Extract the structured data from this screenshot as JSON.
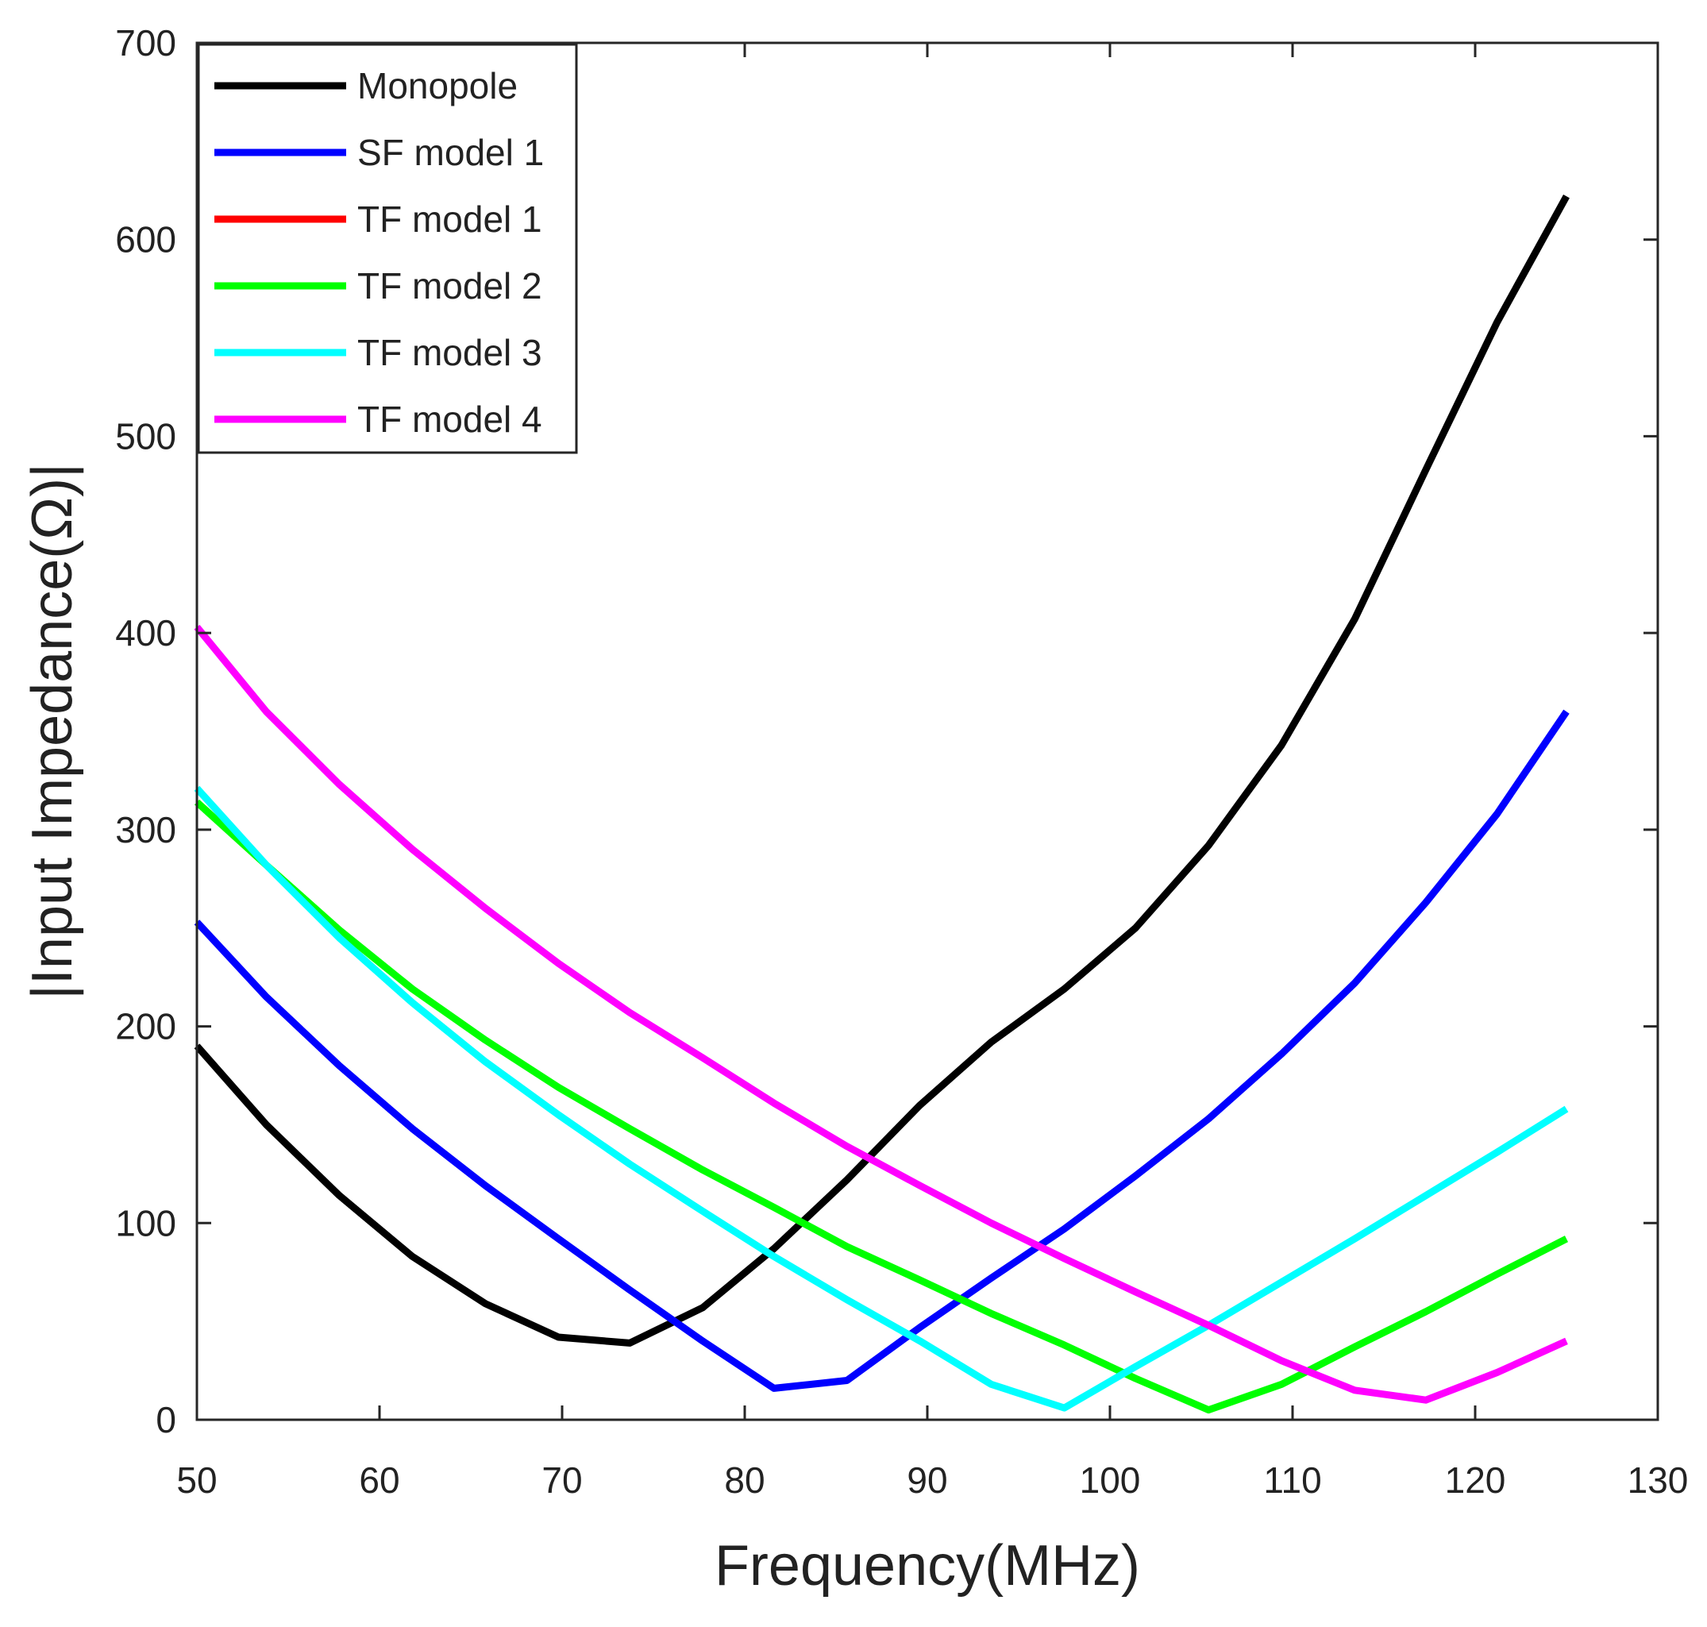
{
  "chart_data": {
    "type": "line",
    "title": "",
    "xlabel": "Frequency(MHz)",
    "ylabel": "|Input Impedance(Ω)|",
    "xlim": [
      50,
      130
    ],
    "ylim": [
      0,
      700
    ],
    "xticks": [
      50,
      60,
      70,
      80,
      90,
      100,
      110,
      120,
      130
    ],
    "yticks": [
      0,
      100,
      200,
      300,
      400,
      500,
      600,
      700
    ],
    "grid": false,
    "legend_position": "top-left",
    "series": [
      {
        "name": "Monopole",
        "color": "#000000",
        "x": [
          50,
          53.8,
          57.8,
          61.8,
          65.8,
          69.8,
          73.7,
          77.7,
          81.6,
          85.6,
          89.6,
          93.5,
          97.5,
          101.4,
          105.4,
          109.4,
          113.4,
          117.3,
          121.2,
          125
        ],
        "y": [
          190,
          150,
          114,
          83,
          59,
          42,
          39,
          57,
          87,
          122,
          160,
          192,
          219,
          250,
          292,
          343,
          407,
          483,
          558,
          622
        ]
      },
      {
        "name": "SF model 1",
        "color": "#0000ff",
        "x": [
          50,
          53.8,
          57.8,
          61.8,
          65.8,
          69.8,
          73.7,
          77.7,
          81.6,
          85.6,
          89.6,
          93.5,
          97.5,
          101.4,
          105.4,
          109.4,
          113.4,
          117.3,
          121.2,
          125
        ],
        "y": [
          253,
          215,
          180,
          148,
          119,
          92,
          66,
          40,
          16,
          20,
          47,
          72,
          97,
          124,
          153,
          186,
          222,
          263,
          308,
          360
        ]
      },
      {
        "name": "TF model 1",
        "color": "#ff0000",
        "x": [],
        "y": []
      },
      {
        "name": "TF model 2",
        "color": "#00ff00",
        "x": [
          50,
          53.8,
          57.8,
          61.8,
          65.8,
          69.8,
          73.7,
          77.7,
          81.6,
          85.6,
          89.6,
          93.5,
          97.5,
          101.4,
          105.4,
          109.4,
          113.4,
          117.3,
          121.2,
          125
        ],
        "y": [
          314,
          282,
          249,
          219,
          193,
          169,
          148,
          127,
          108,
          88,
          71,
          54,
          38,
          21,
          5,
          18,
          37,
          55,
          74,
          92
        ]
      },
      {
        "name": "TF model 3",
        "color": "#00ffff",
        "x": [
          50,
          53.8,
          57.8,
          61.8,
          65.8,
          69.8,
          73.7,
          77.7,
          81.6,
          85.6,
          89.6,
          93.5,
          97.5,
          101.4,
          105.4,
          109.4,
          113.4,
          117.3,
          121.2,
          125
        ],
        "y": [
          321,
          282,
          245,
          212,
          182,
          155,
          130,
          106,
          83,
          61,
          40,
          18,
          6,
          27,
          48,
          70,
          92,
          114,
          136,
          158
        ]
      },
      {
        "name": "TF model 4",
        "color": "#ff00ff",
        "x": [
          50,
          53.8,
          57.8,
          61.8,
          65.8,
          69.8,
          73.7,
          77.7,
          81.6,
          85.6,
          89.6,
          93.5,
          97.5,
          101.4,
          105.4,
          109.4,
          113.4,
          117.3,
          121.2,
          125
        ],
        "y": [
          403,
          360,
          323,
          290,
          260,
          232,
          207,
          184,
          161,
          139,
          119,
          100,
          82,
          65,
          48,
          30,
          15,
          10,
          24,
          40
        ]
      }
    ]
  }
}
